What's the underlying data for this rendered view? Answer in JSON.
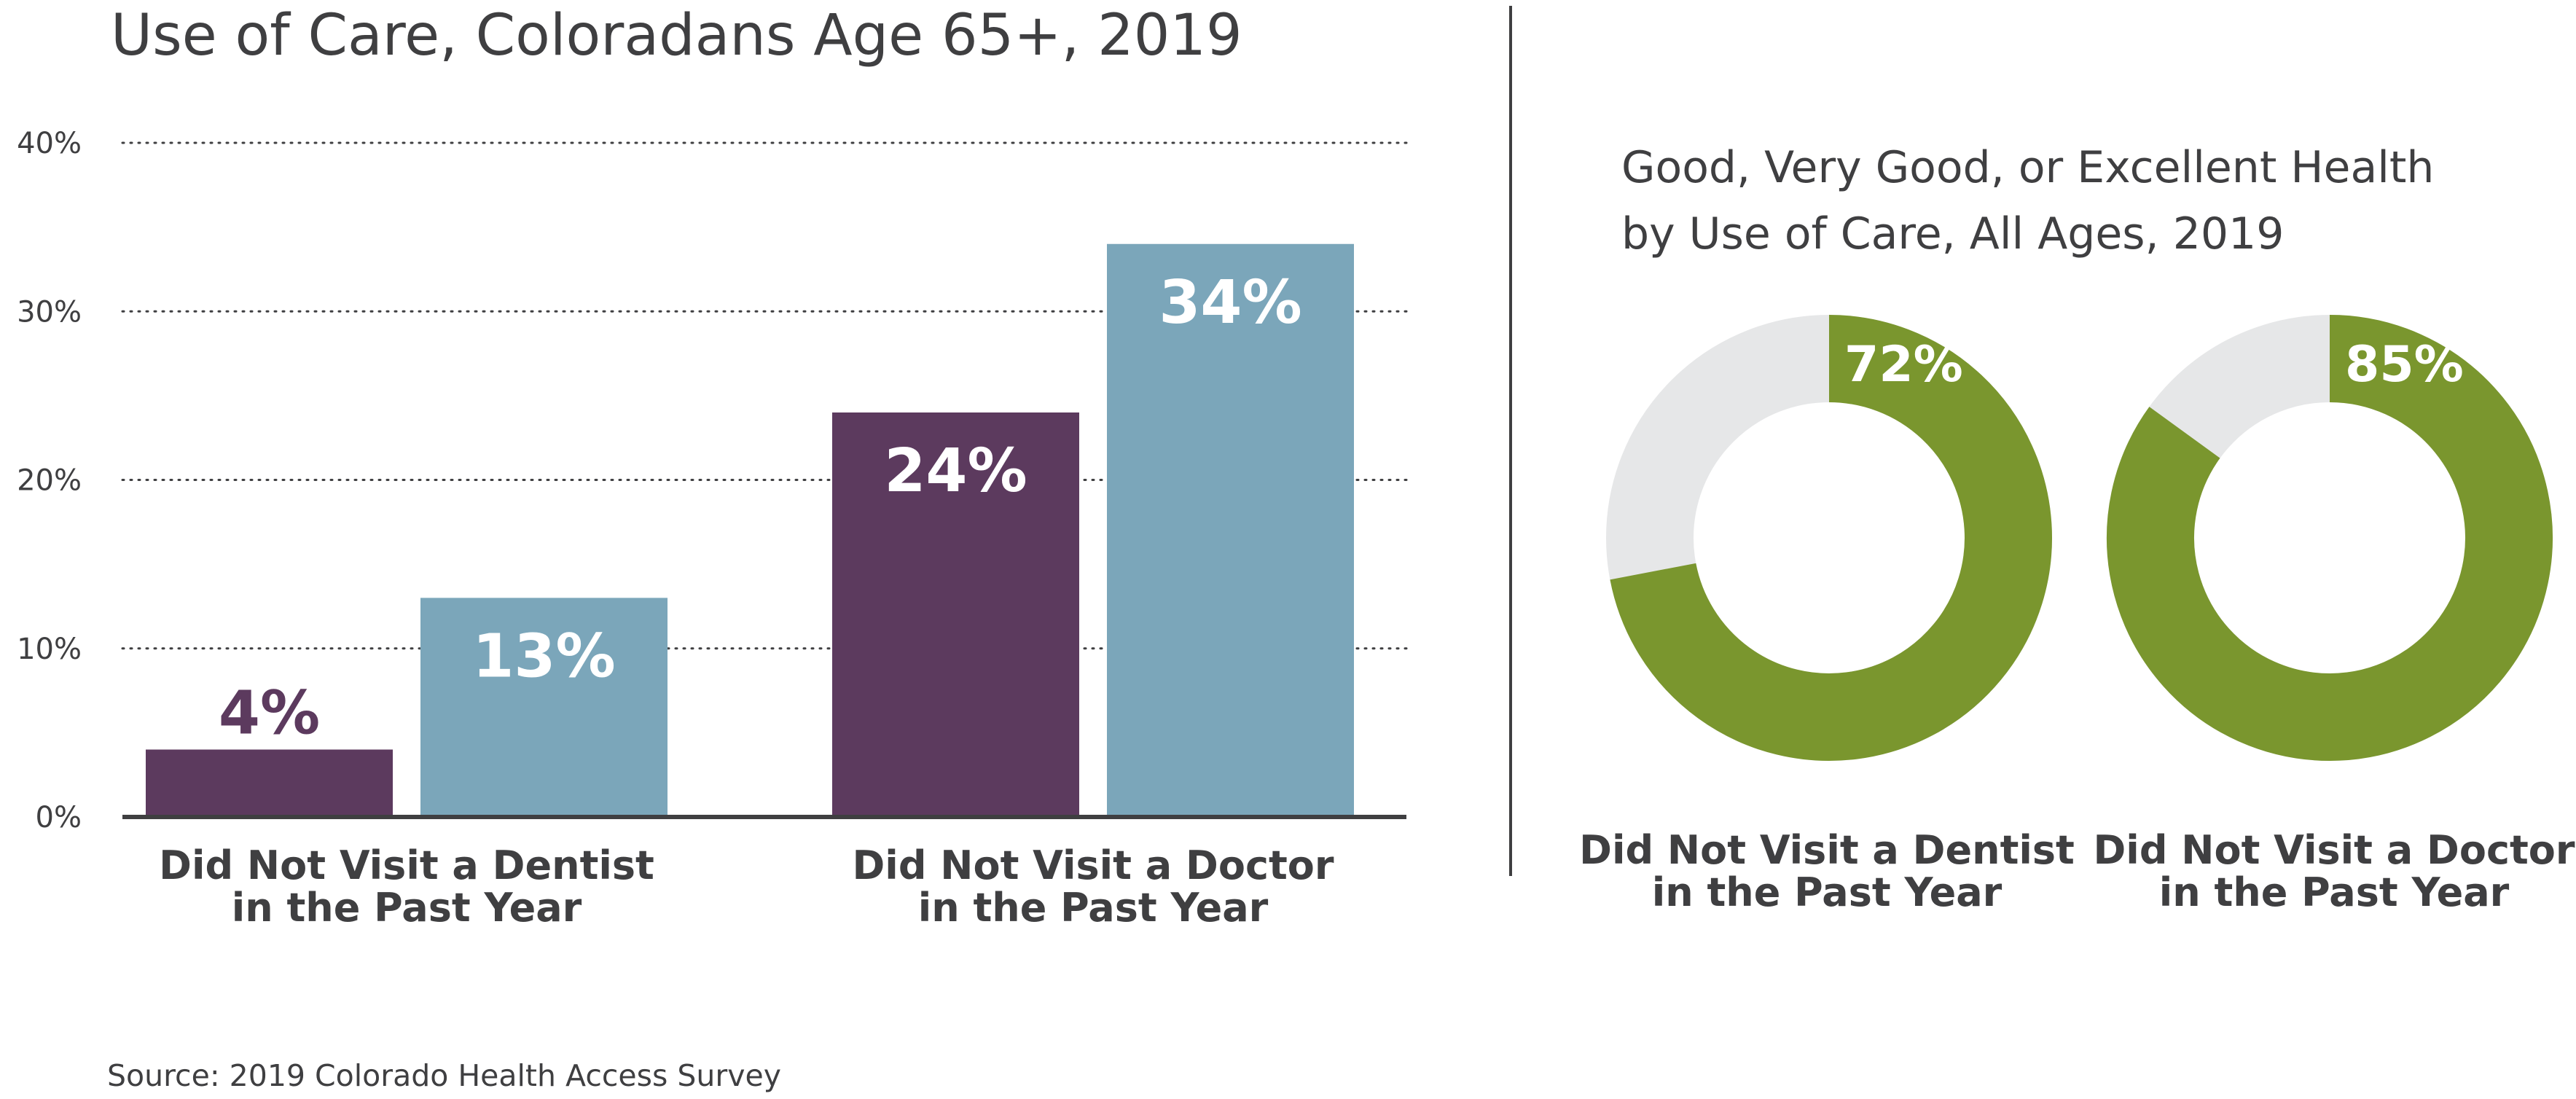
{
  "source": "Source: 2019 Colorado Health Access Survey",
  "colors": {
    "text": "#3f3f41",
    "purple": "#5c3a5e",
    "blue": "#7ba6ba",
    "green": "#7a962e",
    "light_gray": "#e6e7e8",
    "axis": "#3f3f41"
  },
  "chart_data": [
    {
      "type": "bar",
      "title": "Use of Care, Coloradans Age 65+, 2019",
      "categories": [
        [
          "Did Not Visit a Dentist",
          "in the Past Year"
        ],
        [
          "Did Not Visit a Doctor",
          "in the Past Year"
        ]
      ],
      "series": [
        {
          "values": [
            4,
            24
          ],
          "labels": [
            "4%",
            "24%"
          ],
          "color": "#5c3a5e"
        },
        {
          "values": [
            13,
            34
          ],
          "labels": [
            "13%",
            "34%"
          ],
          "color": "#7ba6ba"
        }
      ],
      "ylim": [
        0,
        40
      ],
      "yticks": [
        0,
        10,
        20,
        30,
        40
      ],
      "ytick_labels": [
        "0%",
        "10%",
        "20%",
        "30%",
        "40%"
      ],
      "grid": "dotted horizontal"
    },
    {
      "type": "pie",
      "title": [
        "Good, Very Good, or Excellent Health",
        "by Use of Care, All Ages, 2019"
      ],
      "donuts": [
        {
          "label": [
            "Did Not Visit a Dentist",
            "in the Past Year"
          ],
          "value": 72,
          "value_label": "72%"
        },
        {
          "label": [
            "Did Not Visit a Doctor",
            "in the Past Year"
          ],
          "value": 85,
          "value_label": "85%"
        }
      ]
    }
  ]
}
